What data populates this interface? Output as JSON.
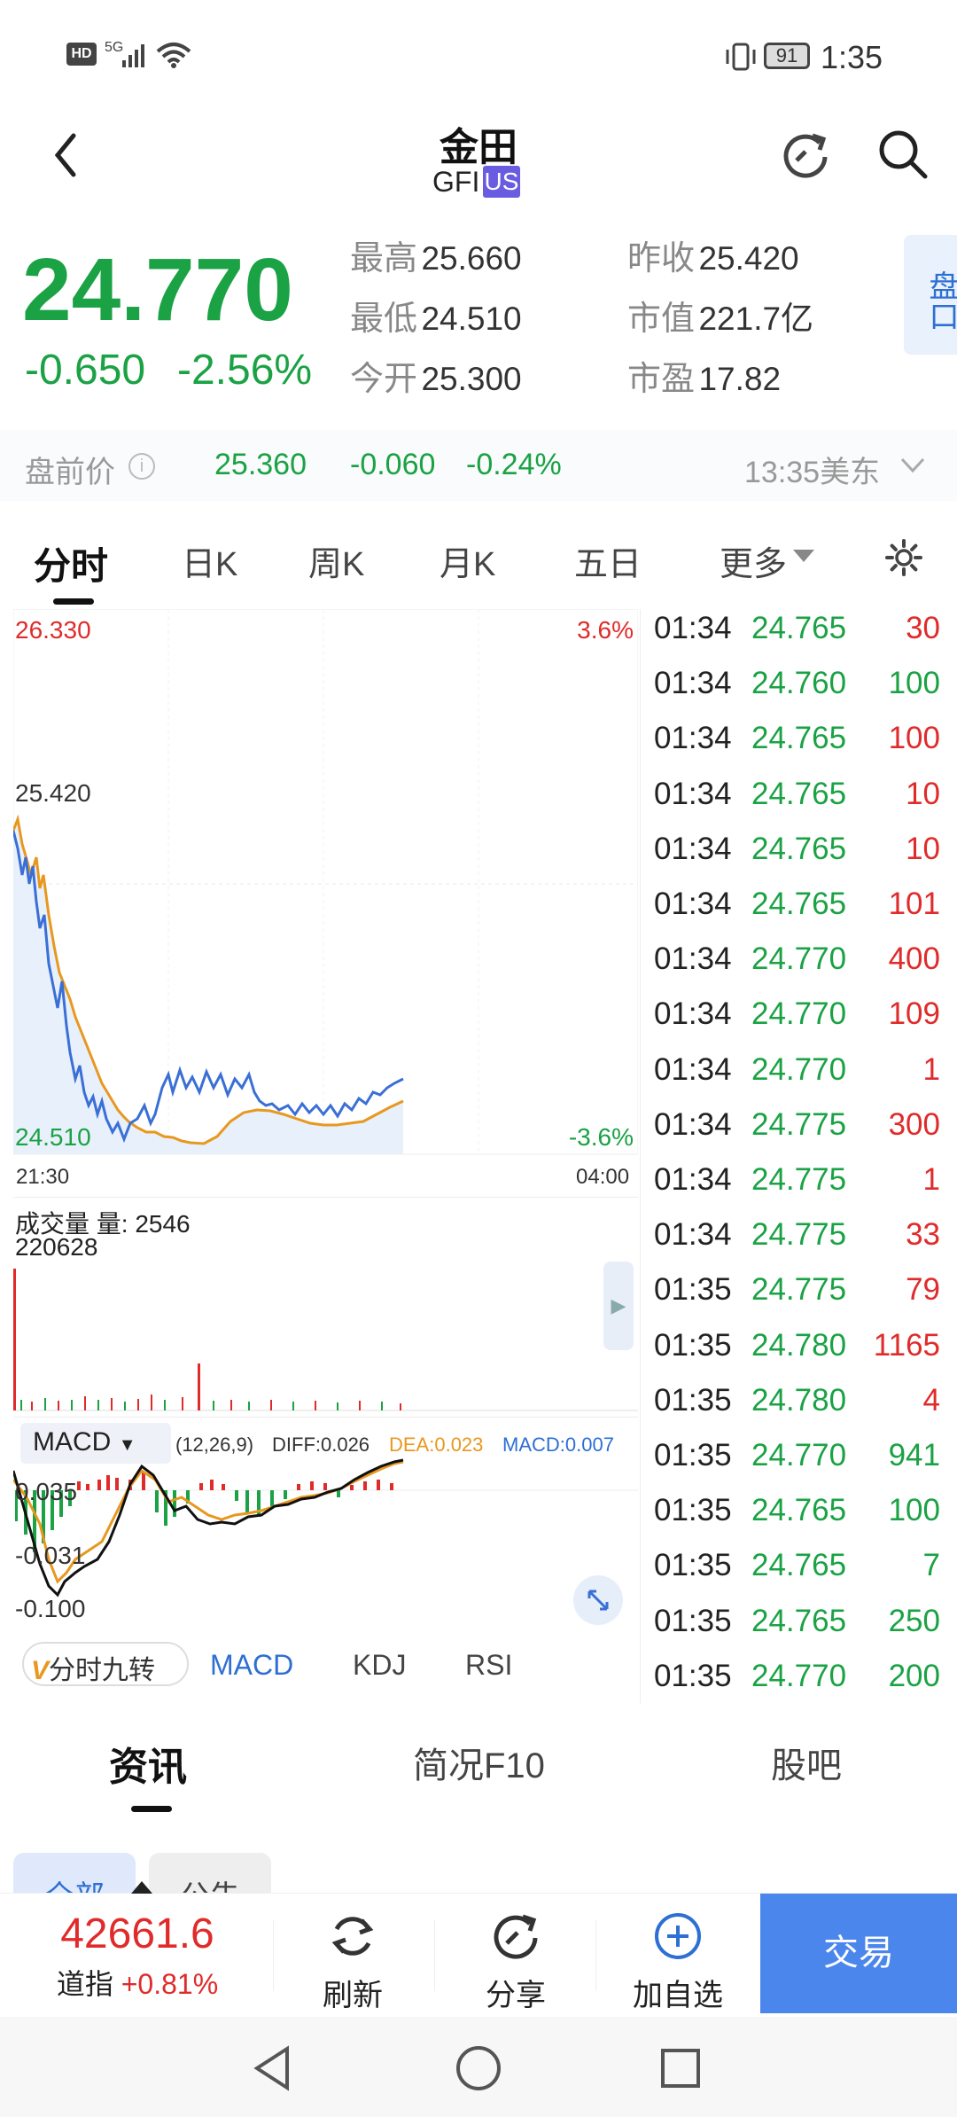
{
  "status": {
    "left_icons": "HD 5G signal wifi",
    "battery": "91",
    "time": "1:35"
  },
  "header": {
    "title": "金田",
    "ticker": "GFI",
    "market": "US"
  },
  "quote": {
    "price": "24.770",
    "change": "-0.650",
    "change_pct": "-2.56%",
    "high_label": "最高",
    "high": "25.660",
    "low_label": "最低",
    "low": "24.510",
    "open_label": "今开",
    "open": "25.300",
    "prev_label": "昨收",
    "prev": "25.420",
    "mcap_label": "市值",
    "mcap": "221.7亿",
    "pe_label": "市盈",
    "pe": "17.82",
    "side_label": "盘口"
  },
  "premarket": {
    "label": "盘前价",
    "price": "25.360",
    "change": "-0.060",
    "pct": "-0.24%",
    "time": "13:35美东"
  },
  "tabs": [
    "分时",
    "日K",
    "周K",
    "月K",
    "五日",
    "更多"
  ],
  "chart_labels": {
    "top": "26.330",
    "mid": "25.420",
    "bottom": "24.510",
    "top_pct": "3.6%",
    "bottom_pct": "-3.6%",
    "start_time": "21:30",
    "end_time": "04:00"
  },
  "volume": {
    "label": "成交量 量: 2546",
    "total": "220628"
  },
  "macd": {
    "name": "MACD",
    "params": "(12,26,9)",
    "diff": "DIFF:0.026",
    "dea": "DEA:0.023",
    "macd": "MACD:0.007",
    "y1": "0.035",
    "y2": "-0.031",
    "y3": "-0.100"
  },
  "indicator_tabs": [
    "分时九转",
    "MACD",
    "KDJ",
    "RSI"
  ],
  "ticks": [
    {
      "time": "01:34",
      "price": "24.765",
      "vol": "30",
      "dir": "up"
    },
    {
      "time": "01:34",
      "price": "24.760",
      "vol": "100",
      "dir": "down"
    },
    {
      "time": "01:34",
      "price": "24.765",
      "vol": "100",
      "dir": "up"
    },
    {
      "time": "01:34",
      "price": "24.765",
      "vol": "10",
      "dir": "up"
    },
    {
      "time": "01:34",
      "price": "24.765",
      "vol": "10",
      "dir": "up"
    },
    {
      "time": "01:34",
      "price": "24.765",
      "vol": "101",
      "dir": "up"
    },
    {
      "time": "01:34",
      "price": "24.770",
      "vol": "400",
      "dir": "up"
    },
    {
      "time": "01:34",
      "price": "24.770",
      "vol": "109",
      "dir": "up"
    },
    {
      "time": "01:34",
      "price": "24.770",
      "vol": "1",
      "dir": "up"
    },
    {
      "time": "01:34",
      "price": "24.775",
      "vol": "300",
      "dir": "up"
    },
    {
      "time": "01:34",
      "price": "24.775",
      "vol": "1",
      "dir": "up"
    },
    {
      "time": "01:34",
      "price": "24.775",
      "vol": "33",
      "dir": "up"
    },
    {
      "time": "01:35",
      "price": "24.775",
      "vol": "79",
      "dir": "up"
    },
    {
      "time": "01:35",
      "price": "24.780",
      "vol": "1165",
      "dir": "up"
    },
    {
      "time": "01:35",
      "price": "24.780",
      "vol": "4",
      "dir": "up"
    },
    {
      "time": "01:35",
      "price": "24.770",
      "vol": "941",
      "dir": "down"
    },
    {
      "time": "01:35",
      "price": "24.765",
      "vol": "100",
      "dir": "down"
    },
    {
      "time": "01:35",
      "price": "24.765",
      "vol": "7",
      "dir": "down"
    },
    {
      "time": "01:35",
      "price": "24.765",
      "vol": "250",
      "dir": "down"
    },
    {
      "time": "01:35",
      "price": "24.770",
      "vol": "200",
      "dir": "down"
    }
  ],
  "news_tabs": [
    "资讯",
    "简况F10",
    "股吧"
  ],
  "filter_chips": [
    "全部",
    "公告"
  ],
  "bottom": {
    "index_value": "42661.6",
    "index_name": "道指",
    "index_pct": "+0.81%",
    "refresh": "刷新",
    "share": "分享",
    "add": "加自选",
    "trade": "交易"
  },
  "colors": {
    "green": "#1aa244",
    "red": "#e02b2b",
    "price_line": "#3a6fd6",
    "avg_line": "#e8981f",
    "trade": "#4a86ec"
  }
}
